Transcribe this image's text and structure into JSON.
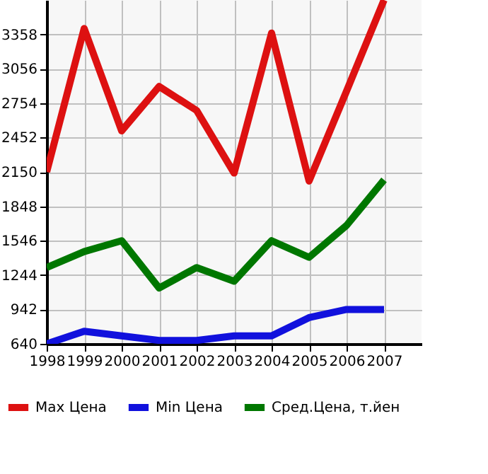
{
  "chart_data": {
    "type": "line",
    "x": [
      1998,
      1999,
      2000,
      2001,
      2002,
      2003,
      2004,
      2005,
      2006,
      2007
    ],
    "series": [
      {
        "name": "Max Цена",
        "color": "#dd1111",
        "values": [
          2150,
          3410,
          2510,
          2900,
          2690,
          2140,
          3370,
          2070,
          2860,
          3660
        ]
      },
      {
        "name": "Min Цена",
        "color": "#1111dd",
        "values": [
          640,
          750,
          710,
          670,
          670,
          710,
          710,
          870,
          942,
          942
        ]
      },
      {
        "name": "Сред.Цена, т.йен",
        "color": "#007700",
        "values": [
          1310,
          1450,
          1546,
          1130,
          1310,
          1190,
          1546,
          1400,
          1680,
          2080
        ]
      }
    ],
    "xlim": [
      1998,
      2008
    ],
    "xticks": [
      1998,
      1999,
      2000,
      2001,
      2002,
      2003,
      2004,
      2005,
      2006,
      2007
    ],
    "ylim": [
      640,
      3660
    ],
    "yticks": [
      640,
      942,
      1244,
      1546,
      1848,
      2150,
      2452,
      2754,
      3056,
      3358
    ],
    "grid": true,
    "legend": "bottom",
    "marker": "none",
    "line_style": "solid"
  }
}
